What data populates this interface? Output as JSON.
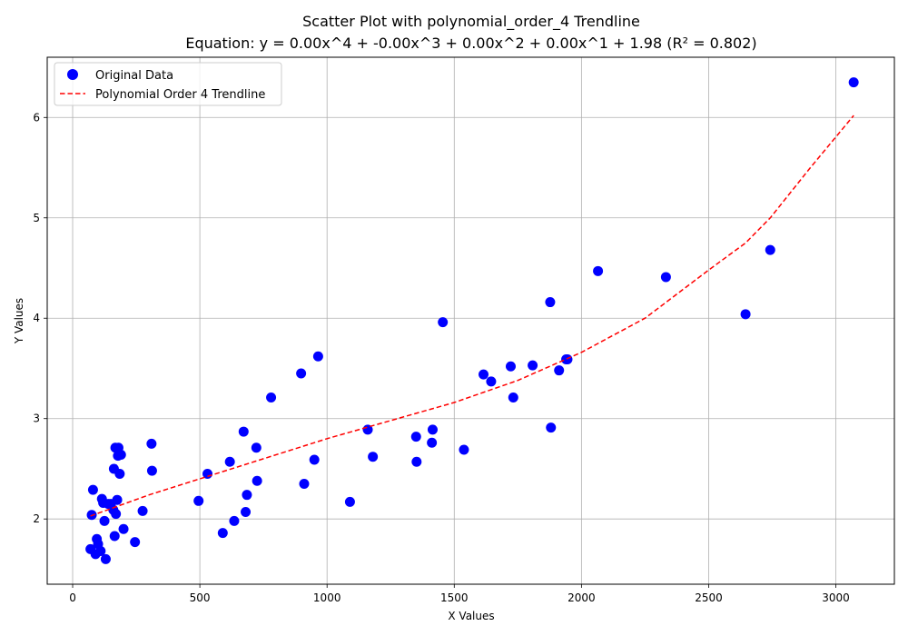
{
  "chart_data": {
    "type": "scatter",
    "title": "Scatter Plot with polynomial_order_4 Trendline",
    "subtitle": "Equation: y = 0.00x^4 + -0.00x^3 + 0.00x^2 + 0.00x^1 + 1.98 (R² = 0.802)",
    "xlabel": "X Values",
    "ylabel": "Y Values",
    "xlim": [
      -100,
      3230
    ],
    "ylim": [
      1.35,
      6.6
    ],
    "xticks": [
      0,
      500,
      1000,
      1500,
      2000,
      2500,
      3000
    ],
    "yticks": [
      2,
      3,
      4,
      5,
      6
    ],
    "grid": true,
    "legend_position": "top-left",
    "colors": {
      "points": "#0000ff",
      "trendline": "#ff0000"
    },
    "series": [
      {
        "name": "Original Data",
        "kind": "scatter",
        "x": [
          70,
          75,
          80,
          90,
          95,
          100,
          110,
          115,
          120,
          125,
          130,
          140,
          150,
          160,
          162,
          165,
          168,
          170,
          175,
          178,
          180,
          185,
          190,
          200,
          245,
          275,
          310,
          312,
          495,
          530,
          590,
          618,
          635,
          672,
          680,
          685,
          722,
          725,
          780,
          898,
          910,
          950,
          965,
          1090,
          1160,
          1180,
          1350,
          1352,
          1412,
          1415,
          1455,
          1538,
          1615,
          1645,
          1722,
          1732,
          1808,
          1877,
          1880,
          1912,
          1940,
          1945,
          2065,
          2332,
          2645,
          2742,
          3070
        ],
        "y": [
          1.7,
          2.04,
          2.29,
          1.65,
          1.8,
          1.75,
          1.68,
          2.2,
          2.16,
          1.98,
          1.6,
          2.15,
          2.15,
          2.09,
          2.5,
          1.83,
          2.71,
          2.05,
          2.19,
          2.63,
          2.71,
          2.45,
          2.64,
          1.9,
          1.77,
          2.08,
          2.75,
          2.48,
          2.18,
          2.45,
          1.86,
          2.57,
          1.98,
          2.87,
          2.07,
          2.24,
          2.71,
          2.38,
          3.21,
          3.45,
          2.35,
          2.59,
          3.62,
          2.17,
          2.89,
          2.62,
          2.82,
          2.57,
          2.76,
          2.89,
          3.96,
          2.69,
          3.44,
          3.37,
          3.52,
          3.21,
          3.53,
          4.16,
          2.91,
          3.48,
          3.59,
          3.59,
          4.47,
          4.41,
          4.04,
          4.68,
          6.35
        ]
      },
      {
        "name": "Polynomial Order 4 Trendline",
        "kind": "line",
        "style": "dashed",
        "x": [
          70,
          300,
          500,
          750,
          1000,
          1250,
          1500,
          1750,
          2000,
          2250,
          2500,
          2645,
          2742,
          2900,
          3070
        ],
        "y": [
          2.03,
          2.24,
          2.4,
          2.6,
          2.8,
          2.98,
          3.16,
          3.38,
          3.66,
          4.0,
          4.48,
          4.75,
          5.0,
          5.5,
          6.02
        ]
      }
    ]
  }
}
